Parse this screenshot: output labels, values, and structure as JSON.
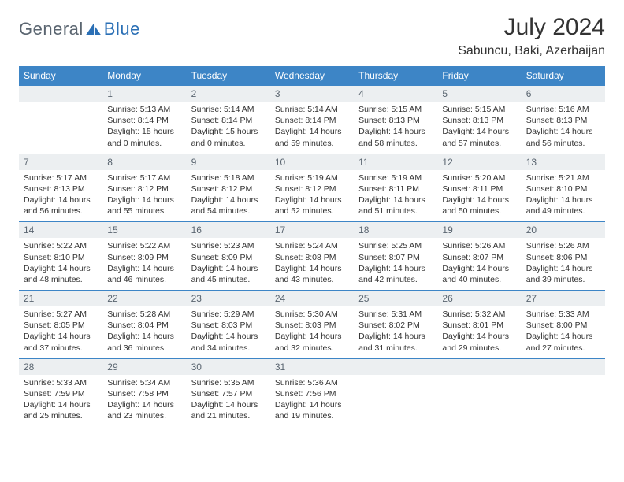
{
  "logo": {
    "text1": "General",
    "text2": "Blue"
  },
  "title": "July 2024",
  "location": "Sabuncu, Baki, Azerbaijan",
  "colors": {
    "header_bg": "#3d85c6",
    "header_text": "#ffffff",
    "daynum_bg": "#eceff1",
    "border": "#3d85c6",
    "body_text": "#333333",
    "logo_gray": "#5a6570",
    "logo_blue": "#2a6fb5"
  },
  "day_headers": [
    "Sunday",
    "Monday",
    "Tuesday",
    "Wednesday",
    "Thursday",
    "Friday",
    "Saturday"
  ],
  "weeks": [
    [
      null,
      {
        "n": "1",
        "sr": "5:13 AM",
        "ss": "8:14 PM",
        "dl": "15 hours and 0 minutes."
      },
      {
        "n": "2",
        "sr": "5:14 AM",
        "ss": "8:14 PM",
        "dl": "15 hours and 0 minutes."
      },
      {
        "n": "3",
        "sr": "5:14 AM",
        "ss": "8:14 PM",
        "dl": "14 hours and 59 minutes."
      },
      {
        "n": "4",
        "sr": "5:15 AM",
        "ss": "8:13 PM",
        "dl": "14 hours and 58 minutes."
      },
      {
        "n": "5",
        "sr": "5:15 AM",
        "ss": "8:13 PM",
        "dl": "14 hours and 57 minutes."
      },
      {
        "n": "6",
        "sr": "5:16 AM",
        "ss": "8:13 PM",
        "dl": "14 hours and 56 minutes."
      }
    ],
    [
      {
        "n": "7",
        "sr": "5:17 AM",
        "ss": "8:13 PM",
        "dl": "14 hours and 56 minutes."
      },
      {
        "n": "8",
        "sr": "5:17 AM",
        "ss": "8:12 PM",
        "dl": "14 hours and 55 minutes."
      },
      {
        "n": "9",
        "sr": "5:18 AM",
        "ss": "8:12 PM",
        "dl": "14 hours and 54 minutes."
      },
      {
        "n": "10",
        "sr": "5:19 AM",
        "ss": "8:12 PM",
        "dl": "14 hours and 52 minutes."
      },
      {
        "n": "11",
        "sr": "5:19 AM",
        "ss": "8:11 PM",
        "dl": "14 hours and 51 minutes."
      },
      {
        "n": "12",
        "sr": "5:20 AM",
        "ss": "8:11 PM",
        "dl": "14 hours and 50 minutes."
      },
      {
        "n": "13",
        "sr": "5:21 AM",
        "ss": "8:10 PM",
        "dl": "14 hours and 49 minutes."
      }
    ],
    [
      {
        "n": "14",
        "sr": "5:22 AM",
        "ss": "8:10 PM",
        "dl": "14 hours and 48 minutes."
      },
      {
        "n": "15",
        "sr": "5:22 AM",
        "ss": "8:09 PM",
        "dl": "14 hours and 46 minutes."
      },
      {
        "n": "16",
        "sr": "5:23 AM",
        "ss": "8:09 PM",
        "dl": "14 hours and 45 minutes."
      },
      {
        "n": "17",
        "sr": "5:24 AM",
        "ss": "8:08 PM",
        "dl": "14 hours and 43 minutes."
      },
      {
        "n": "18",
        "sr": "5:25 AM",
        "ss": "8:07 PM",
        "dl": "14 hours and 42 minutes."
      },
      {
        "n": "19",
        "sr": "5:26 AM",
        "ss": "8:07 PM",
        "dl": "14 hours and 40 minutes."
      },
      {
        "n": "20",
        "sr": "5:26 AM",
        "ss": "8:06 PM",
        "dl": "14 hours and 39 minutes."
      }
    ],
    [
      {
        "n": "21",
        "sr": "5:27 AM",
        "ss": "8:05 PM",
        "dl": "14 hours and 37 minutes."
      },
      {
        "n": "22",
        "sr": "5:28 AM",
        "ss": "8:04 PM",
        "dl": "14 hours and 36 minutes."
      },
      {
        "n": "23",
        "sr": "5:29 AM",
        "ss": "8:03 PM",
        "dl": "14 hours and 34 minutes."
      },
      {
        "n": "24",
        "sr": "5:30 AM",
        "ss": "8:03 PM",
        "dl": "14 hours and 32 minutes."
      },
      {
        "n": "25",
        "sr": "5:31 AM",
        "ss": "8:02 PM",
        "dl": "14 hours and 31 minutes."
      },
      {
        "n": "26",
        "sr": "5:32 AM",
        "ss": "8:01 PM",
        "dl": "14 hours and 29 minutes."
      },
      {
        "n": "27",
        "sr": "5:33 AM",
        "ss": "8:00 PM",
        "dl": "14 hours and 27 minutes."
      }
    ],
    [
      {
        "n": "28",
        "sr": "5:33 AM",
        "ss": "7:59 PM",
        "dl": "14 hours and 25 minutes."
      },
      {
        "n": "29",
        "sr": "5:34 AM",
        "ss": "7:58 PM",
        "dl": "14 hours and 23 minutes."
      },
      {
        "n": "30",
        "sr": "5:35 AM",
        "ss": "7:57 PM",
        "dl": "14 hours and 21 minutes."
      },
      {
        "n": "31",
        "sr": "5:36 AM",
        "ss": "7:56 PM",
        "dl": "14 hours and 19 minutes."
      },
      null,
      null,
      null
    ]
  ],
  "labels": {
    "sunrise": "Sunrise:",
    "sunset": "Sunset:",
    "daylight": "Daylight:"
  }
}
